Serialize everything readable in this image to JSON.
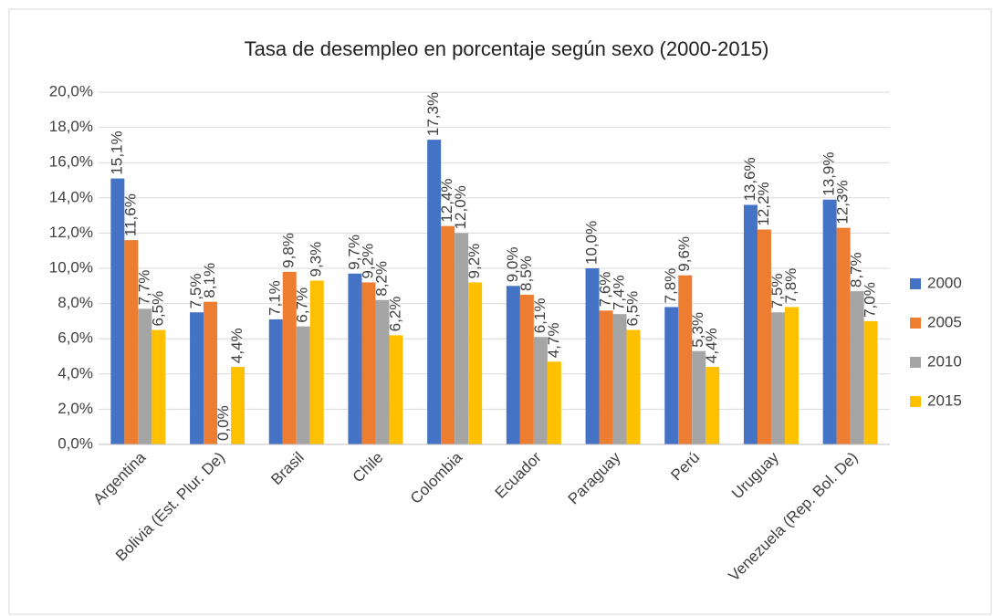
{
  "chart_data": {
    "type": "bar",
    "title": "Tasa de desempleo en porcentaje según sexo (2000-2015)",
    "categories": [
      "Argentina",
      "Bolivia (Est. Plur. De)",
      "Brasil",
      "Chile",
      "Colombia",
      "Ecuador",
      "Paraguay",
      "Perú",
      "Uruguay",
      "Venezuela (Rep. Bol. De)"
    ],
    "series": [
      {
        "name": "2000",
        "color": "#4472c4",
        "values": [
          15.1,
          7.5,
          7.1,
          9.7,
          17.3,
          9.0,
          10.0,
          7.8,
          13.6,
          13.9
        ],
        "value_labels": [
          "15,1%",
          "7,5%",
          "7,1%",
          "9,7%",
          "17,3%",
          "9,0%",
          "10,0%",
          "7,8%",
          "13,6%",
          "13,9%"
        ]
      },
      {
        "name": "2005",
        "color": "#ed7d31",
        "values": [
          11.6,
          8.1,
          9.8,
          9.2,
          12.4,
          8.5,
          7.6,
          9.6,
          12.2,
          12.3
        ],
        "value_labels": [
          "11,6%",
          "8,1%",
          "9,8%",
          "9,2%",
          "12,4%",
          "8,5%",
          "7,6%",
          "9,6%",
          "12,2%",
          "12,3%"
        ]
      },
      {
        "name": "2010",
        "color": "#a5a5a5",
        "values": [
          7.7,
          0.0,
          6.7,
          8.2,
          12.0,
          6.1,
          7.4,
          5.3,
          7.5,
          8.7
        ],
        "value_labels": [
          "7,7%",
          "0,0%",
          "6,7%",
          "8,2%",
          "12,0%",
          "6,1%",
          "7,4%",
          "5,3%",
          "7,5%",
          "8,7%"
        ]
      },
      {
        "name": "2015",
        "color": "#ffc000",
        "values": [
          6.5,
          4.4,
          9.3,
          6.2,
          9.2,
          4.7,
          6.5,
          4.4,
          7.8,
          7.0
        ],
        "value_labels": [
          "6,5%",
          "4,4%",
          "9,3%",
          "6,2%",
          "9,2%",
          "4,7%",
          "6,5%",
          "4,4%",
          "7,8%",
          "7,0%"
        ]
      }
    ],
    "ylim": [
      0,
      20
    ],
    "yticks": [
      {
        "value": 0,
        "label": "0,0%"
      },
      {
        "value": 2,
        "label": "2,0%"
      },
      {
        "value": 4,
        "label": "4,0%"
      },
      {
        "value": 6,
        "label": "6,0%"
      },
      {
        "value": 8,
        "label": "8,0%"
      },
      {
        "value": 10,
        "label": "10,0%"
      },
      {
        "value": 12,
        "label": "12,0%"
      },
      {
        "value": 14,
        "label": "14,0%"
      },
      {
        "value": 16,
        "label": "16,0%"
      },
      {
        "value": 18,
        "label": "18,0%"
      },
      {
        "value": 20,
        "label": "20,0%"
      }
    ],
    "grid": true,
    "legend": "right"
  }
}
